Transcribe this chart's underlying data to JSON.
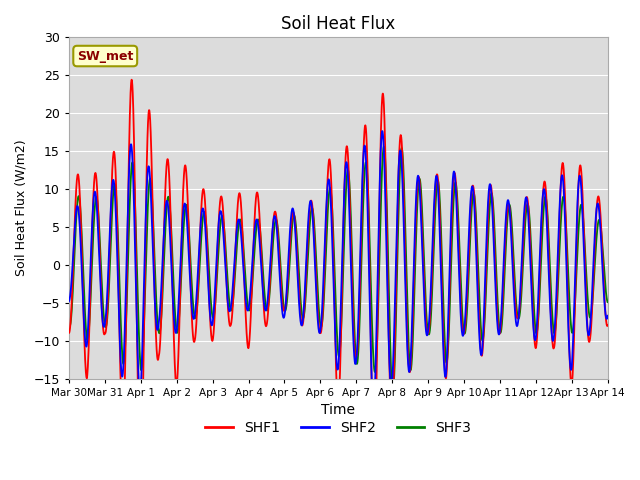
{
  "title": "Soil Heat Flux",
  "xlabel": "Time",
  "ylabel": "Soil Heat Flux (W/m2)",
  "ylim": [
    -15,
    30
  ],
  "yticks": [
    -15,
    -10,
    -5,
    0,
    5,
    10,
    15,
    20,
    25,
    30
  ],
  "xtick_labels": [
    "Mar 30",
    "Mar 31",
    "Apr 1",
    "Apr 2",
    "Apr 3",
    "Apr 4",
    "Apr 5",
    "Apr 6",
    "Apr 7",
    "Apr 8",
    "Apr 9",
    "Apr 10",
    "Apr 11",
    "Apr 12",
    "Apr 13",
    "Apr 14"
  ],
  "series_labels": [
    "SHF1",
    "SHF2",
    "SHF3"
  ],
  "colors": [
    "red",
    "blue",
    "green"
  ],
  "linewidth": 1.3,
  "bg_color": "#dcdcdc",
  "grid_color": "white",
  "swmet_text": "SW_met",
  "swmet_facecolor": "#ffffcc",
  "swmet_edgecolor": "#999900",
  "swmet_textcolor": "#8b0000"
}
